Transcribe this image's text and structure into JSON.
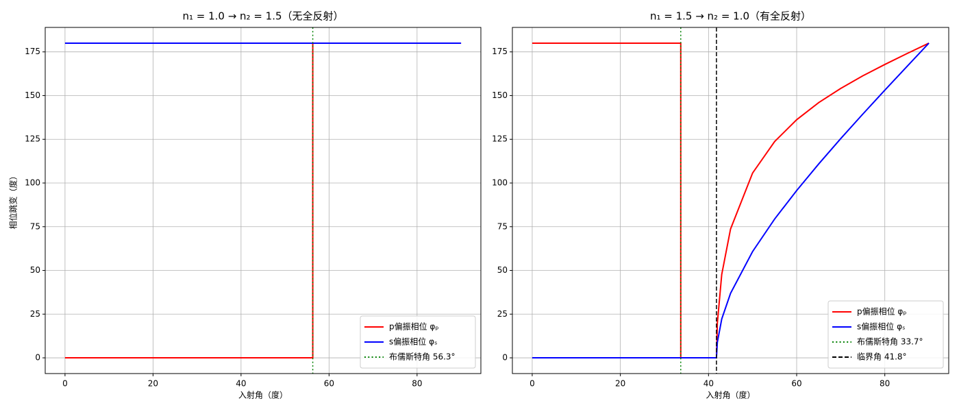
{
  "chart_data": [
    {
      "type": "line",
      "title": "n₁ = 1.0 → n₂ = 1.5（无全反射）",
      "xlabel": "入射角（度）",
      "ylabel": "相位跳变（度）",
      "x": [
        0,
        56.3,
        56.3,
        90
      ],
      "series": [
        {
          "name": "p偏振相位 φₚ",
          "color": "#ff0000",
          "values": [
            0,
            0,
            180,
            180
          ]
        },
        {
          "name": "s偏振相位 φₛ",
          "color": "#0000ff",
          "values": [
            180,
            180,
            180,
            180
          ]
        }
      ],
      "vlines": [
        {
          "x": 56.3,
          "name": "布儒斯特角 56.3°",
          "color": "#008000",
          "style": "dotted"
        }
      ],
      "xlim": [
        -4.5,
        94.5
      ],
      "ylim": [
        -9,
        189
      ],
      "xticks": [
        0,
        20,
        40,
        60,
        80
      ],
      "yticks": [
        0,
        25,
        50,
        75,
        100,
        125,
        150,
        175
      ],
      "grid": true,
      "legend": "lower right"
    },
    {
      "type": "line",
      "title": "n₁ = 1.5 → n₂ = 1.0（有全反射）",
      "xlabel": "入射角（度）",
      "x": [
        0,
        33.7,
        33.7,
        41.8,
        42,
        43,
        45,
        50,
        55,
        60,
        65,
        70,
        75,
        80,
        85,
        90
      ],
      "series": [
        {
          "name": "p偏振相位 φₚ",
          "color": "#ff0000",
          "values": [
            180,
            180,
            0,
            0,
            19.7,
            47.7,
            73.7,
            105.7,
            123.7,
            136.2,
            146.0,
            154.1,
            161.3,
            167.8,
            174.0,
            180
          ]
        },
        {
          "name": "s偏振相位 φₛ",
          "color": "#0000ff",
          "values": [
            0,
            0,
            0,
            0,
            8.8,
            22.2,
            36.9,
            60.8,
            79.4,
            95.7,
            110.9,
            125.4,
            139.4,
            153.1,
            166.6,
            180
          ]
        }
      ],
      "vlines": [
        {
          "x": 33.7,
          "name": "布儒斯特角 33.7°",
          "color": "#008000",
          "style": "dotted"
        },
        {
          "x": 41.8,
          "name": "临界角 41.8°",
          "color": "#000000",
          "style": "dashed"
        }
      ],
      "xlim": [
        -4.5,
        94.5
      ],
      "ylim": [
        -9,
        189
      ],
      "xticks": [
        0,
        20,
        40,
        60,
        80
      ],
      "yticks": [
        0,
        25,
        50,
        75,
        100,
        125,
        150,
        175
      ],
      "grid": true,
      "legend": "lower right"
    }
  ]
}
